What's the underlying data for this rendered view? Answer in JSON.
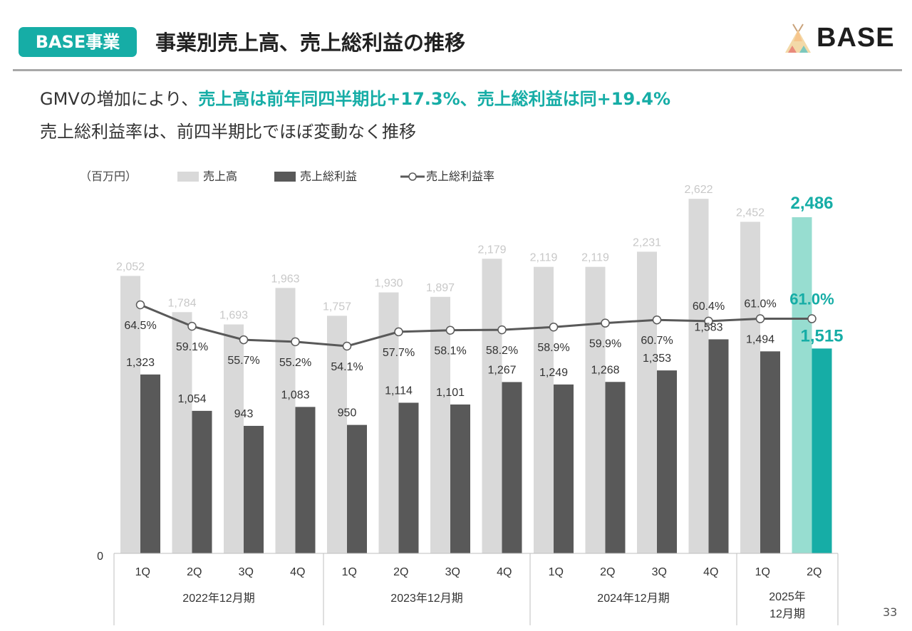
{
  "header": {
    "tag": "BASE事業",
    "title": "事業別売上高、売上総利益の推移",
    "logo_text": "BASE"
  },
  "subtitle": {
    "line1_prefix": "GMVの増加により、",
    "line1_highlight": "売上高は前年同四半期比+17.3%、売上総利益は同+19.4%",
    "line2": "売上総利益率は、前四半期比でほぼ変動なく推移"
  },
  "legend": {
    "unit": "（百万円）",
    "sales": "売上高",
    "gross_profit": "売上総利益",
    "margin": "売上総利益率"
  },
  "page_number": "33",
  "colors": {
    "brand": "#16ada6",
    "sales_bar": "#d9d9d9",
    "gp_bar": "#595959",
    "sales_highlight": "#97ddd0",
    "gp_highlight": "#16ada6",
    "line": "#595959"
  },
  "chart_data": {
    "type": "bar",
    "zero_label": "0",
    "ylim": [
      0,
      2750
    ],
    "categories": [
      "1Q",
      "2Q",
      "3Q",
      "4Q",
      "1Q",
      "2Q",
      "3Q",
      "4Q",
      "1Q",
      "2Q",
      "3Q",
      "4Q",
      "1Q",
      "2Q"
    ],
    "groups": [
      {
        "label": "2022年12月期",
        "count": 4
      },
      {
        "label": "2023年12月期",
        "count": 4
      },
      {
        "label": "2024年12月期",
        "count": 4
      },
      {
        "label": "2025年\n12月期",
        "count": 2
      }
    ],
    "series": [
      {
        "name": "売上高",
        "values": [
          2052,
          1784,
          1693,
          1963,
          1757,
          1930,
          1897,
          2179,
          2119,
          2119,
          2231,
          2622,
          2452,
          2486
        ],
        "labels": [
          "2,052",
          "1,784",
          "1,693",
          "1,963",
          "1,757",
          "1,930",
          "1,897",
          "2,179",
          "2,119",
          "2,119",
          "2,231",
          "2,622",
          "2,452",
          "2,486"
        ]
      },
      {
        "name": "売上総利益",
        "values": [
          1323,
          1054,
          943,
          1083,
          950,
          1114,
          1101,
          1267,
          1249,
          1268,
          1353,
          1583,
          1494,
          1515
        ],
        "labels": [
          "1,323",
          "1,054",
          "943",
          "1,083",
          "950",
          "1,114",
          "1,101",
          "1,267",
          "1,249",
          "1,268",
          "1,353",
          "1,583",
          "1,494",
          "1,515"
        ]
      },
      {
        "name": "売上総利益率",
        "values": [
          64.5,
          59.1,
          55.7,
          55.2,
          54.1,
          57.7,
          58.1,
          58.2,
          58.9,
          59.9,
          60.7,
          60.4,
          61.0,
          61.0
        ],
        "labels": [
          "64.5%",
          "59.1%",
          "55.7%",
          "55.2%",
          "54.1%",
          "57.7%",
          "58.1%",
          "58.2%",
          "58.9%",
          "59.9%",
          "60.7%",
          "60.4%",
          "61.0%",
          "61.0%"
        ]
      }
    ],
    "highlight_index": 13
  }
}
